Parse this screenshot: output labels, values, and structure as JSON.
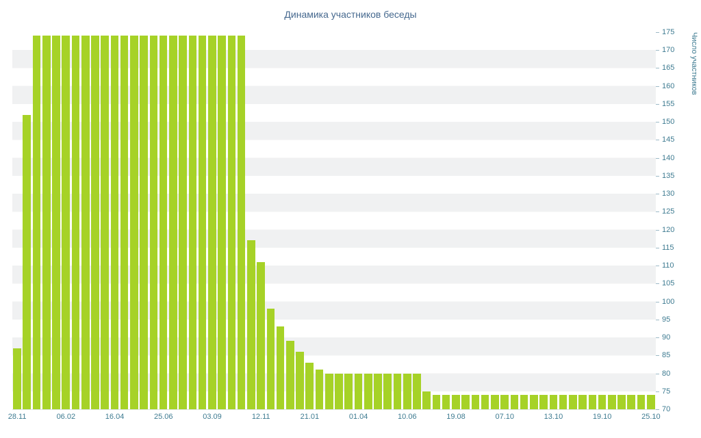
{
  "chart_data": {
    "type": "bar",
    "title": "Динамика участников беседы",
    "xlabel": "",
    "ylabel": "Число участников",
    "ylim": [
      70,
      175
    ],
    "grid": "alternating horizontal bands every 5 units",
    "legend": "none",
    "bar_color": "#a6d227",
    "axis_text_color": "#3e7b91",
    "title_color": "#45688e",
    "stripe_color": "#f0f1f2",
    "y_ticks": [
      175,
      170,
      165,
      160,
      155,
      150,
      145,
      140,
      135,
      130,
      125,
      120,
      115,
      110,
      105,
      100,
      95,
      90,
      85,
      80,
      75,
      70
    ],
    "x_tick_labels": [
      "28.11",
      "06.02",
      "16.04",
      "25.06",
      "03.09",
      "12.11",
      "21.01",
      "01.04",
      "10.06",
      "19.08",
      "07.10",
      "13.10",
      "19.10",
      "25.10"
    ],
    "x_tick_indices": [
      0,
      5,
      10,
      15,
      20,
      25,
      30,
      35,
      40,
      45,
      50,
      55,
      60,
      65
    ],
    "values": [
      87,
      152,
      174,
      174,
      174,
      174,
      174,
      174,
      174,
      174,
      174,
      174,
      174,
      174,
      174,
      174,
      174,
      174,
      174,
      174,
      174,
      174,
      174,
      174,
      117,
      111,
      98,
      93,
      89,
      86,
      83,
      81,
      80,
      80,
      80,
      80,
      80,
      80,
      80,
      80,
      80,
      80,
      75,
      74,
      74,
      74,
      74,
      74,
      74,
      74,
      74,
      74,
      74,
      74,
      74,
      74,
      74,
      74,
      74,
      74,
      74,
      74,
      74,
      74,
      74,
      74
    ]
  }
}
